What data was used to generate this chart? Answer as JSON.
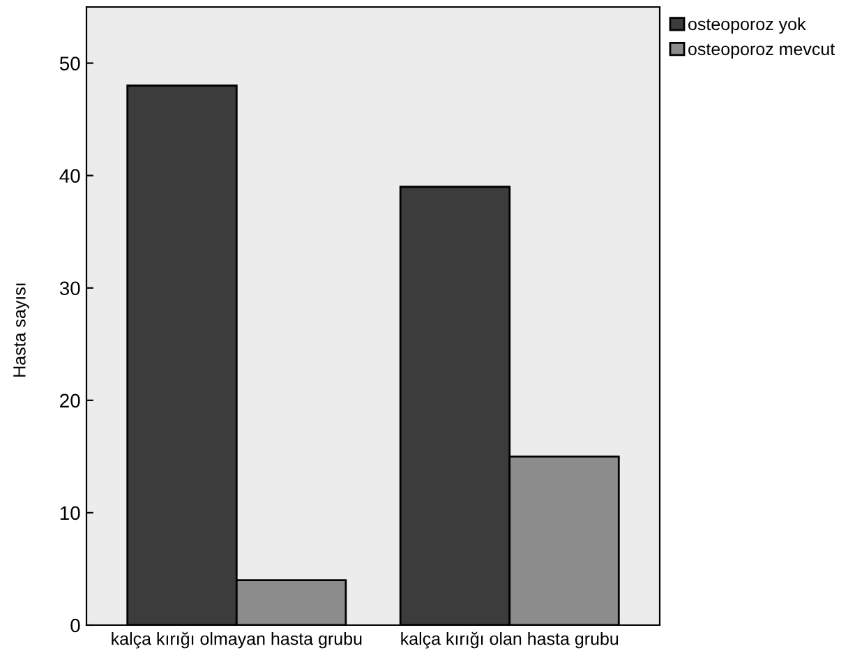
{
  "chart_data": {
    "type": "bar",
    "ylabel": "Hasta sayısı",
    "categories": [
      "kalça kırığı olmayan hasta grubu",
      "kalça kırığı olan hasta grubu"
    ],
    "series": [
      {
        "name": "osteoporoz yok",
        "color": "#3c3c3c",
        "values": [
          48,
          39
        ]
      },
      {
        "name": "osteoporoz mevcut",
        "color": "#8c8c8c",
        "values": [
          4,
          15
        ]
      }
    ],
    "ylim": [
      0,
      55
    ],
    "yticks": [
      0,
      10,
      20,
      30,
      40,
      50
    ],
    "grid": false,
    "legend": "top right"
  }
}
